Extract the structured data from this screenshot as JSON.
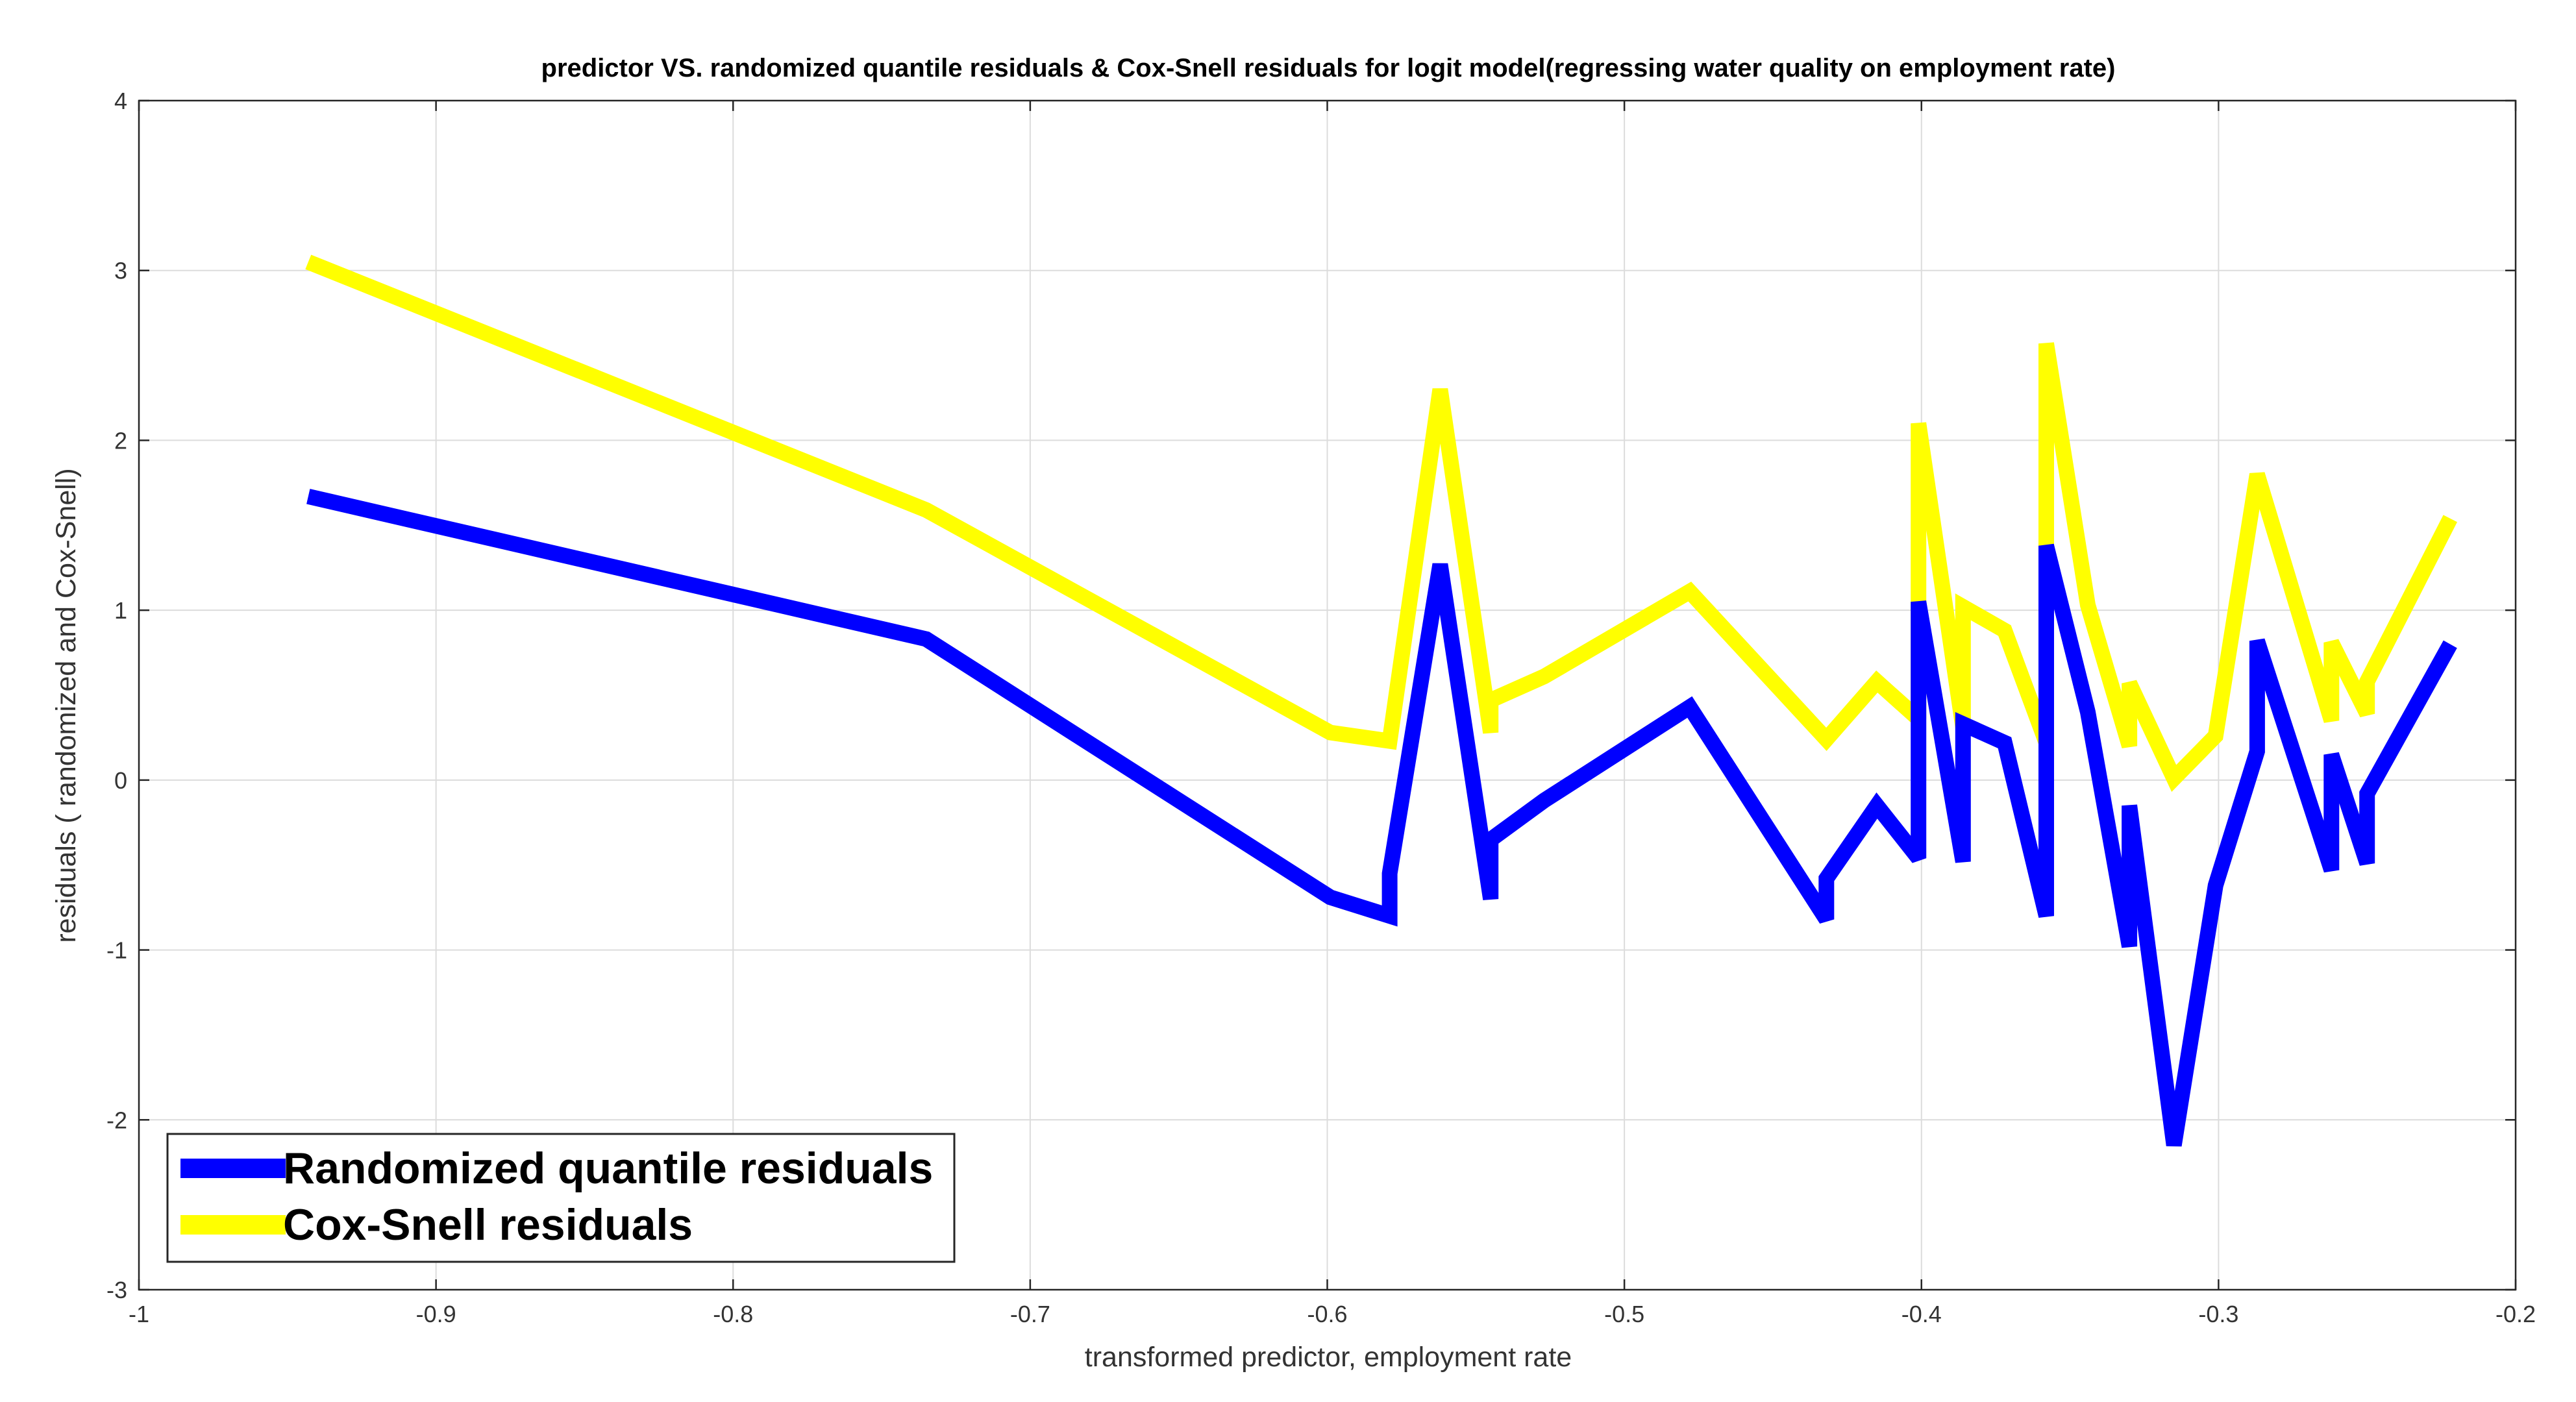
{
  "chart_data": {
    "type": "line",
    "title": "predictor VS. randomized quantile residuals & Cox-Snell residuals for logit  model(regressing water quality on employment rate)",
    "xlabel": "transformed predictor, employment rate",
    "ylabel": "residuals ( randomized and Cox-Snell)",
    "xlim": [
      -1,
      -0.2
    ],
    "ylim": [
      -3,
      4
    ],
    "xticks": [
      -1,
      -0.9,
      -0.8,
      -0.7,
      -0.6,
      -0.5,
      -0.4,
      -0.3,
      -0.2
    ],
    "yticks": [
      -3,
      -2,
      -1,
      0,
      1,
      2,
      3,
      4
    ],
    "xtick_labels": [
      "-1",
      "-0.9",
      "-0.8",
      "-0.7",
      "-0.6",
      "-0.5",
      "-0.4",
      "-0.3",
      "-0.2"
    ],
    "ytick_labels": [
      "-3",
      "-2",
      "-1",
      "0",
      "1",
      "2",
      "3",
      "4"
    ],
    "grid": true,
    "legend_position": "bottom-left",
    "series": [
      {
        "name": "Randomized quantile residuals",
        "color": "#0000ff",
        "x": [
          -0.943,
          -0.735,
          -0.599,
          -0.579,
          -0.579,
          -0.562,
          -0.545,
          -0.545,
          -0.527,
          -0.478,
          -0.432,
          -0.432,
          -0.415,
          -0.401,
          -0.401,
          -0.386,
          -0.386,
          -0.372,
          -0.358,
          -0.358,
          -0.344,
          -0.33,
          -0.33,
          -0.315,
          -0.301,
          -0.287,
          -0.287,
          -0.262,
          -0.262,
          -0.25,
          -0.25,
          -0.222
        ],
        "y": [
          1.67,
          0.83,
          -0.69,
          -0.8,
          -0.55,
          1.27,
          -0.7,
          -0.35,
          -0.12,
          0.43,
          -0.82,
          -0.58,
          -0.15,
          -0.46,
          1.05,
          -0.48,
          0.33,
          0.22,
          -0.8,
          1.38,
          0.4,
          -0.98,
          -0.15,
          -2.15,
          -0.62,
          0.17,
          0.82,
          -0.53,
          0.15,
          -0.49,
          -0.08,
          0.8
        ]
      },
      {
        "name": "Cox-Snell residuals",
        "color": "#ffff00",
        "x": [
          -0.943,
          -0.735,
          -0.599,
          -0.579,
          -0.562,
          -0.545,
          -0.545,
          -0.527,
          -0.478,
          -0.432,
          -0.415,
          -0.401,
          -0.401,
          -0.386,
          -0.386,
          -0.372,
          -0.358,
          -0.358,
          -0.344,
          -0.33,
          -0.33,
          -0.315,
          -0.301,
          -0.287,
          -0.262,
          -0.262,
          -0.25,
          -0.25,
          -0.222
        ],
        "y": [
          3.05,
          1.59,
          0.28,
          0.23,
          2.3,
          0.28,
          0.47,
          0.61,
          1.11,
          0.24,
          0.58,
          0.36,
          2.1,
          0.31,
          1.02,
          0.88,
          0.22,
          2.57,
          1.03,
          0.2,
          0.57,
          0.01,
          0.26,
          1.8,
          0.35,
          0.81,
          0.39,
          0.58,
          1.54
        ]
      }
    ]
  }
}
